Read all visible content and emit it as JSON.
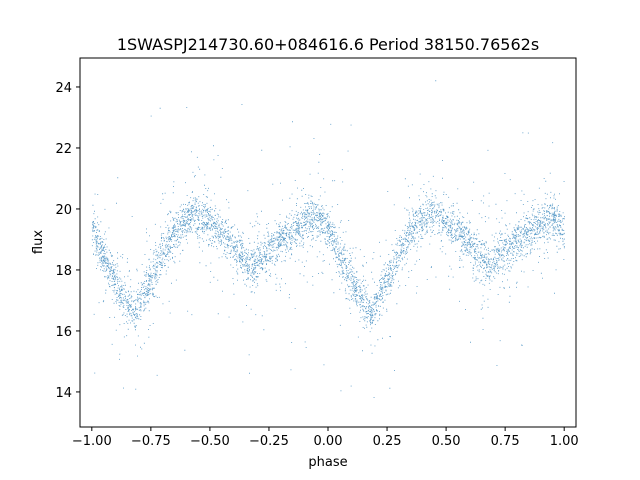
{
  "chart_data": {
    "type": "scatter",
    "title": "1SWASPJ214730.60+084616.6 Period 38150.76562s",
    "xlabel": "phase",
    "ylabel": "flux",
    "xlim": [
      -1.05,
      1.05
    ],
    "ylim": [
      12.85,
      24.95
    ],
    "x_ticks": [
      -1.0,
      -0.75,
      -0.5,
      -0.25,
      0.0,
      0.25,
      0.5,
      0.75,
      1.0
    ],
    "x_tick_labels": [
      "−1.00",
      "−0.75",
      "−0.50",
      "−0.25",
      "0.00",
      "0.25",
      "0.50",
      "0.75",
      "1.00"
    ],
    "y_ticks": [
      14,
      16,
      18,
      20,
      22,
      24
    ],
    "y_tick_labels": [
      "14",
      "16",
      "18",
      "20",
      "22",
      "24"
    ],
    "grid": false,
    "marker_color": "#1f77b4",
    "series": [
      {
        "phase": [
          -1.0,
          -0.9,
          -0.82,
          -0.75,
          -0.65,
          -0.57,
          -0.45,
          -0.32,
          -0.2,
          -0.06,
          0.0,
          0.1,
          0.18,
          0.25,
          0.35,
          0.43,
          0.55,
          0.68,
          0.8,
          0.94,
          1.0
        ],
        "flux": [
          19.3,
          17.6,
          16.5,
          17.8,
          19.3,
          19.9,
          19.2,
          18.1,
          19.0,
          19.8,
          19.3,
          17.6,
          16.5,
          17.8,
          19.3,
          19.9,
          19.2,
          18.1,
          19.0,
          19.8,
          19.3
        ]
      }
    ]
  }
}
